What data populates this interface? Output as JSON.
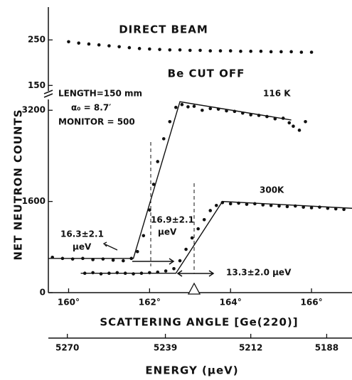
{
  "chart_data": {
    "type": "scatter",
    "ylabel": "NET NEUTRON COUNTS",
    "xlabel": "SCATTERING ANGLE [Ge(220)]",
    "x2label": "ENERGY (μeV)",
    "xlim": [
      159.5,
      167.0
    ],
    "xticks": [
      {
        "value": 160,
        "label": "160°"
      },
      {
        "value": 162,
        "label": "162°"
      },
      {
        "value": 164,
        "label": "164°"
      },
      {
        "value": 166,
        "label": "166°"
      }
    ],
    "x2lim": [
      5276,
      5180
    ],
    "x2ticks": [
      5270,
      5239,
      5212,
      5188
    ],
    "ylim": [
      0,
      3390
    ],
    "yticks": [
      0,
      1600,
      3200
    ],
    "y2lim": [
      138,
      322
    ],
    "y2ticks": [
      150,
      250
    ],
    "series": [
      {
        "name": "116 K",
        "color": "#111111",
        "x": [
          159.6,
          159.85,
          160.1,
          160.35,
          160.6,
          160.85,
          161.1,
          161.35,
          161.55,
          161.7,
          161.85,
          162.0,
          162.1,
          162.2,
          162.35,
          162.5,
          162.65,
          162.8,
          162.95,
          163.1,
          163.3,
          163.5,
          163.7,
          163.9,
          164.1,
          164.3,
          164.5,
          164.7,
          164.9,
          165.1,
          165.3,
          165.45,
          165.55,
          165.7,
          165.85
        ],
        "values": [
          620,
          600,
          590,
          600,
          580,
          590,
          570,
          560,
          600,
          720,
          1000,
          1450,
          1900,
          2300,
          2700,
          3000,
          3250,
          3300,
          3260,
          3270,
          3200,
          3230,
          3220,
          3190,
          3180,
          3150,
          3120,
          3110,
          3090,
          3050,
          3060,
          2980,
          2920,
          2850,
          3000
        ]
      },
      {
        "name": "300K",
        "color": "#111111",
        "x": [
          160.4,
          160.6,
          160.8,
          161.0,
          161.2,
          161.4,
          161.6,
          161.8,
          162.0,
          162.2,
          162.4,
          162.6,
          162.75,
          162.9,
          163.05,
          163.2,
          163.35,
          163.5,
          163.65,
          163.8,
          164.0,
          164.2,
          164.4,
          164.6,
          164.8,
          165.0,
          165.2,
          165.4,
          165.6,
          165.8,
          166.0,
          166.2,
          166.4,
          166.6,
          166.8
        ],
        "values": [
          340,
          350,
          330,
          340,
          350,
          340,
          330,
          340,
          350,
          360,
          380,
          420,
          560,
          760,
          960,
          1120,
          1280,
          1440,
          1530,
          1580,
          1560,
          1570,
          1550,
          1560,
          1540,
          1530,
          1520,
          1510,
          1520,
          1500,
          1490,
          1500,
          1480,
          1470,
          1460
        ]
      },
      {
        "name": "DIRECT BEAM",
        "color": "#111111",
        "axis": "y2",
        "x": [
          160,
          160.25,
          160.5,
          160.75,
          161,
          161.25,
          161.5,
          161.75,
          162,
          162.25,
          162.5,
          162.75,
          163,
          163.25,
          163.5,
          163.75,
          164,
          164.25,
          164.5,
          164.75,
          165,
          165.25,
          165.5,
          165.75,
          166
        ],
        "values": [
          246,
          243,
          241,
          239,
          237,
          235,
          233,
          231,
          230,
          229,
          228,
          228,
          227,
          227,
          226,
          226,
          226,
          225,
          225,
          225,
          224,
          224,
          224,
          223,
          223
        ]
      }
    ],
    "fits": [
      {
        "x": [
          159.5,
          161.6,
          162.75,
          165.5
        ],
        "values": [
          600,
          600,
          3350,
          3030
        ]
      },
      {
        "x": [
          160.3,
          162.65,
          163.8,
          167.0
        ],
        "values": [
          340,
          340,
          1600,
          1480
        ]
      }
    ],
    "annotations": [
      "Be CUT OFF",
      "LENGTH=150 mm",
      "α₀ = 8.7′",
      "MONITOR = 500",
      "16.3±2.1",
      "μeV",
      "16.9±2.1",
      "μeV",
      "13.3±2.0 μeV"
    ]
  }
}
